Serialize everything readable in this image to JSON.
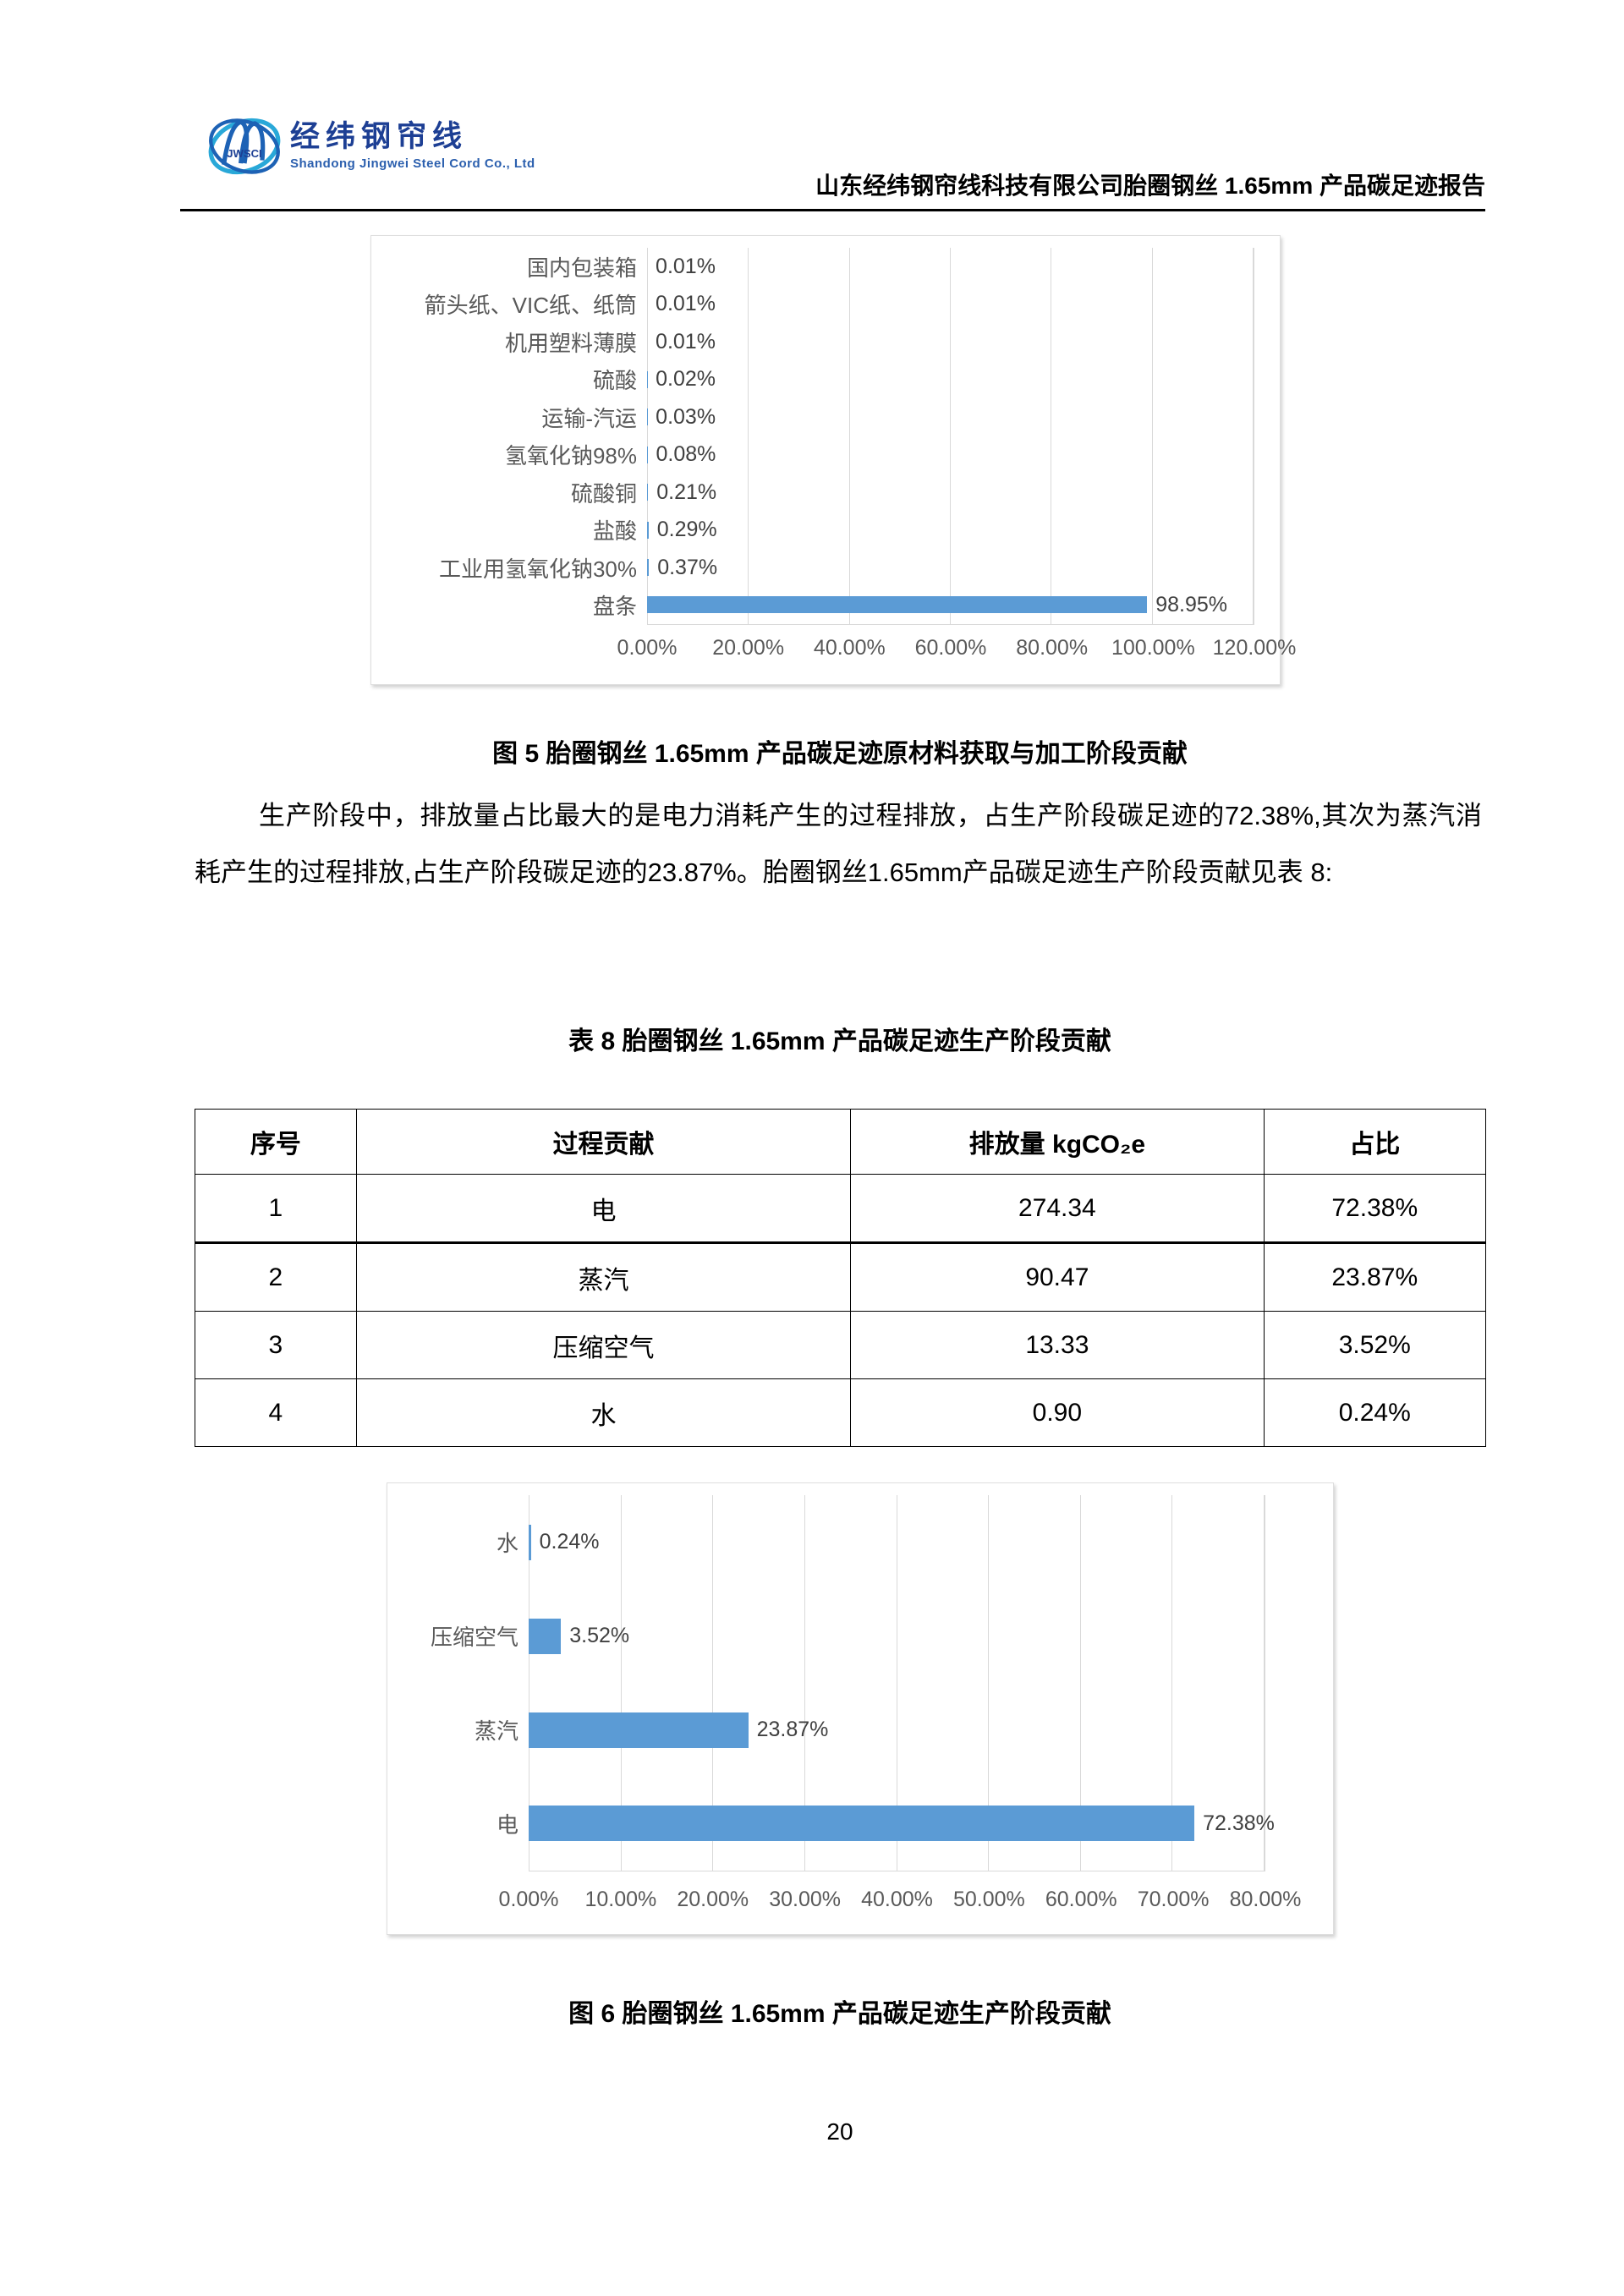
{
  "header": {
    "logo": {
      "brand_cn": "经纬钢帘线",
      "brand_en": "Shandong Jingwei Steel Cord Co., Ltd",
      "monogram": "JWSCI"
    },
    "doc_title": "山东经纬钢帘线科技有限公司胎圈钢丝 1.65mm 产品碳足迹报告"
  },
  "figure5": {
    "caption": "图 5 胎圈钢丝 1.65mm 产品碳足迹原材料获取与加工阶段贡献"
  },
  "figure6": {
    "caption": "图 6 胎圈钢丝 1.65mm 产品碳足迹生产阶段贡献"
  },
  "paragraph": "生产阶段中，排放量占比最大的是电力消耗产生的过程排放，占生产阶段碳足迹的72.38%,其次为蒸汽消耗产生的过程排放,占生产阶段碳足迹的23.87%。胎圈钢丝1.65mm产品碳足迹生产阶段贡献见表 8:",
  "table8": {
    "caption": "表 8 胎圈钢丝 1.65mm 产品碳足迹生产阶段贡献",
    "columns": [
      "序号",
      "过程贡献",
      "排放量 kgCO₂e",
      "占比"
    ],
    "rows": [
      [
        "1",
        "电",
        "274.34",
        "72.38%"
      ],
      [
        "2",
        "蒸汽",
        "90.47",
        "23.87%"
      ],
      [
        "3",
        "压缩空气",
        "13.33",
        "3.52%"
      ],
      [
        "4",
        "水",
        "0.90",
        "0.24%"
      ]
    ]
  },
  "chart_data": [
    {
      "type": "bar",
      "orientation": "horizontal",
      "title": "胎圈钢丝 1.65mm 产品碳足迹原材料获取与加工阶段贡献",
      "categories": [
        "国内包装箱",
        "箭头纸、VIC纸、纸筒",
        "机用塑料薄膜",
        "硫酸",
        "运输-汽运",
        "氢氧化钠98%",
        "硫酸铜",
        "盐酸",
        "工业用氢氧化钠30%",
        "盘条"
      ],
      "values": [
        0.01,
        0.01,
        0.01,
        0.02,
        0.03,
        0.08,
        0.21,
        0.29,
        0.37,
        98.95
      ],
      "data_labels": [
        "0.01%",
        "0.01%",
        "0.01%",
        "0.02%",
        "0.03%",
        "0.08%",
        "0.21%",
        "0.29%",
        "0.37%",
        "98.95%"
      ],
      "xlim": [
        0,
        120
      ],
      "x_ticks": [
        "0.00%",
        "20.00%",
        "40.00%",
        "60.00%",
        "80.00%",
        "100.00%",
        "120.00%"
      ],
      "grid": true,
      "legend": "none",
      "bar_color": "#5b9bd5"
    },
    {
      "type": "bar",
      "orientation": "horizontal",
      "title": "胎圈钢丝 1.65mm 产品碳足迹生产阶段贡献",
      "categories": [
        "水",
        "压缩空气",
        "蒸汽",
        "电"
      ],
      "values": [
        0.24,
        3.52,
        23.87,
        72.38
      ],
      "data_labels": [
        "0.24%",
        "3.52%",
        "23.87%",
        "72.38%"
      ],
      "xlim": [
        0,
        80
      ],
      "x_ticks": [
        "0.00%",
        "10.00%",
        "20.00%",
        "30.00%",
        "40.00%",
        "50.00%",
        "60.00%",
        "70.00%",
        "80.00%"
      ],
      "grid": true,
      "legend": "none",
      "bar_color": "#5b9bd5"
    }
  ],
  "page_number": "20",
  "colors": {
    "bar_blue": "#5b9bd5",
    "grid_gray": "#d9d9d9",
    "chart_text": "#595959",
    "brand_blue": "#1d3f94",
    "brand_cyan": "#29a8d8"
  }
}
